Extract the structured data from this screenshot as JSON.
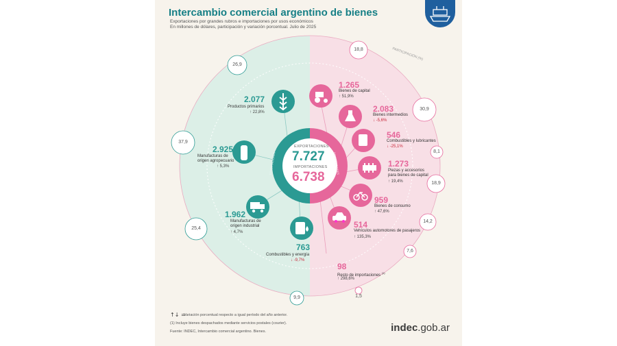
{
  "header": {
    "title": "Intercambio comercial argentino de bienes",
    "subtitle1": "Exportaciones por grandes rubros e importaciones por usos económicos",
    "subtitle2": "En millones de dólares, participación y variación porcentual. Julio de 2025"
  },
  "center": {
    "exports_label": "EXPORTACIONES",
    "exports_value": "7.727",
    "imports_label": "IMPORTACIONES",
    "imports_value": "6.738",
    "ring_exports": "EXPORTACIONES",
    "ring_imports": "IMPORTACIONES"
  },
  "participation_label": "PARTICIPACIÓN (%)",
  "exports": [
    {
      "value": "2.077",
      "label": "Productos primarios",
      "var": "22,8%",
      "dir": "up",
      "share": "26,9",
      "icon": "wheat-icon"
    },
    {
      "value": "2.925",
      "label": "Manufacturas de origen agropecuario",
      "var": "5,3%",
      "dir": "up",
      "share": "37,9",
      "icon": "bottle-icon"
    },
    {
      "value": "1.962",
      "label": "Manufacturas de origen industrial",
      "var": "4,7%",
      "dir": "up",
      "share": "25,4",
      "icon": "truck-icon"
    },
    {
      "value": "763",
      "label": "Combustibles y energía",
      "var": "-9,7%",
      "dir": "down",
      "share": "9,9",
      "icon": "oil-barrel-icon"
    }
  ],
  "imports": [
    {
      "value": "1.265",
      "label": "Bienes de capital",
      "var": "51,9%",
      "dir": "up",
      "share": "18,8",
      "icon": "tractor-icon"
    },
    {
      "value": "2.083",
      "label": "Bienes intermedios",
      "var": "-5,6%",
      "dir": "down",
      "share": "30,9",
      "icon": "flask-icon"
    },
    {
      "value": "546",
      "label": "Combustibles y lubricantes",
      "var": "-25,1%",
      "dir": "down",
      "share": "8,1",
      "icon": "fuel-can-icon"
    },
    {
      "value": "1.273",
      "label": "Piezas y accesorios para bienes de capital",
      "var": "19,4%",
      "dir": "up",
      "share": "18,9",
      "icon": "gear-part-icon"
    },
    {
      "value": "959",
      "label": "Bienes de consumo",
      "var": "47,6%",
      "dir": "up",
      "share": "14,2",
      "icon": "bicycle-icon"
    },
    {
      "value": "514",
      "label": "Vehículos automotores de pasajeros",
      "var": "135,3%",
      "dir": "up",
      "share": "7,6",
      "icon": "car-icon"
    },
    {
      "value": "98",
      "label": "Resto de importaciones",
      "var": "298,6%",
      "dir": "up",
      "share": "1,5",
      "icon": "",
      "note": "(1)"
    }
  ],
  "footer": {
    "legend": "Variación porcentual respecto a igual período del año anterior.",
    "note": "(1) Incluye bienes despachados mediante servicios postales (courier).",
    "source": "Fuente: INDEC, Intercambio comercial argentino. Bienes.",
    "logo_main": "indec",
    "logo_suffix": ".gob.ar"
  },
  "colors": {
    "teal": "#2b9a93",
    "pink": "#e6679b",
    "teal_bg": "#dcefe7",
    "pink_bg": "#f8dfe6",
    "badge": "#1f5f9e"
  }
}
